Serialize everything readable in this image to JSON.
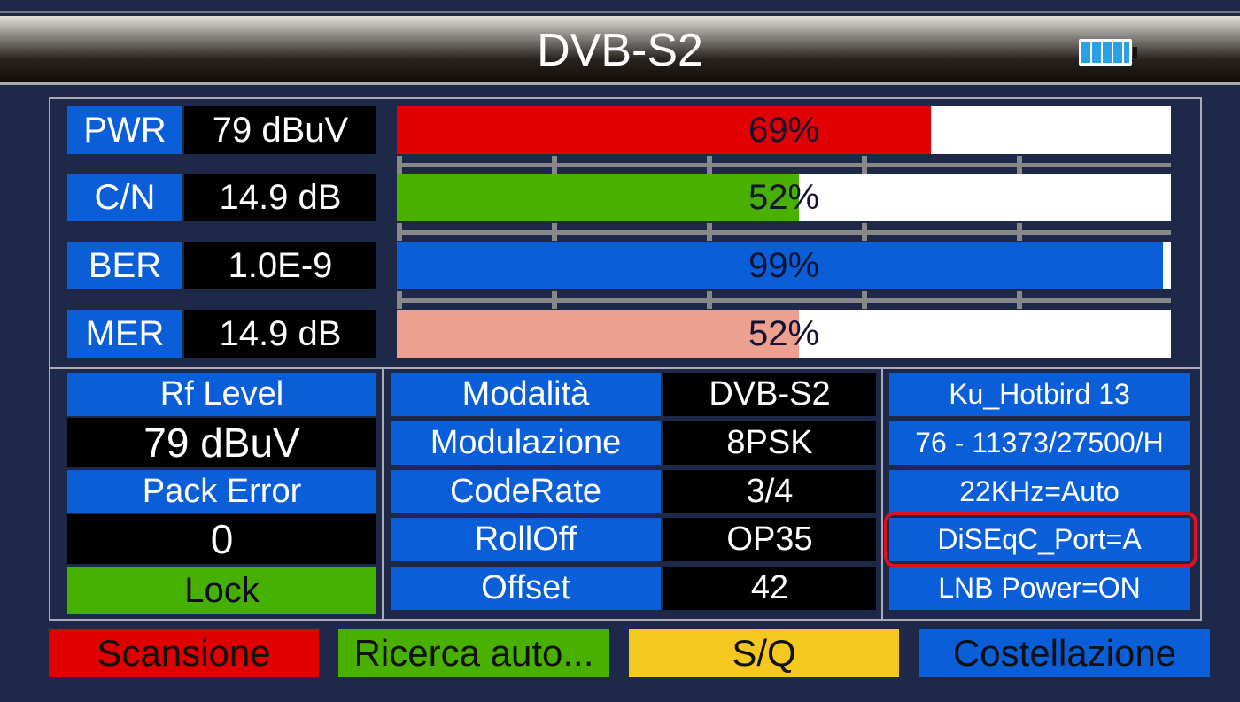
{
  "header": {
    "title": "DVB-S2",
    "battery_icon": "battery-full-icon"
  },
  "meters": [
    {
      "label": "PWR",
      "value": "79 dBuV",
      "percent": 69,
      "percent_text": "69%",
      "color": "#e00000"
    },
    {
      "label": "C/N",
      "value": "14.9 dB",
      "percent": 52,
      "percent_text": "52%",
      "color": "#4ab000"
    },
    {
      "label": "BER",
      "value": "1.0E-9",
      "percent": 99,
      "percent_text": "99%",
      "color": "#0a5ed8"
    },
    {
      "label": "MER",
      "value": "14.9 dB",
      "percent": 52,
      "percent_text": "52%",
      "color": "#eea090"
    }
  ],
  "signal": {
    "rf_level_label": "Rf Level",
    "rf_level_value": "79 dBuV",
    "pack_error_label": "Pack Error",
    "pack_error_value": "0",
    "lock_status": "Lock"
  },
  "params": [
    {
      "label": "Modalità",
      "value": "DVB-S2"
    },
    {
      "label": "Modulazione",
      "value": "8PSK"
    },
    {
      "label": "CodeRate",
      "value": "3/4"
    },
    {
      "label": "RollOff",
      "value": "OP35"
    },
    {
      "label": "Offset",
      "value": "42"
    }
  ],
  "satellite": [
    "Ku_Hotbird 13",
    "76 - 11373/27500/H",
    "22KHz=Auto",
    "DiSEqC_Port=A",
    "LNB Power=ON"
  ],
  "buttons": {
    "red": "Scansione",
    "green": "Ricerca auto...",
    "yellow": "S/Q",
    "blue": "Costellazione"
  }
}
